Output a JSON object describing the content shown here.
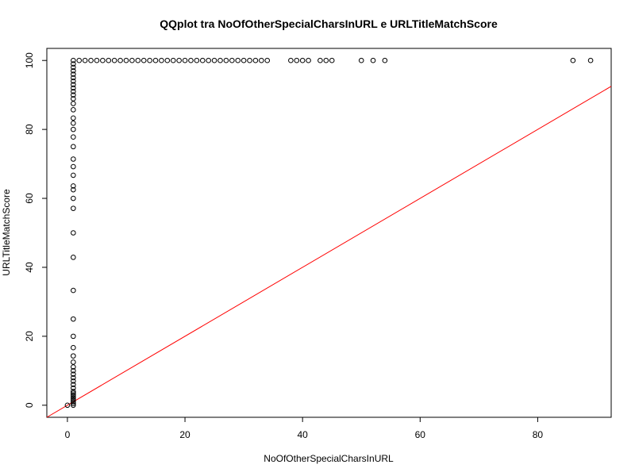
{
  "chart_data": {
    "type": "scatter",
    "title": "QQplot tra NoOfOtherSpecialCharsInURL e URLTitleMatchScore",
    "xlabel": "NoOfOtherSpecialCharsInURL",
    "ylabel": "URLTitleMatchScore",
    "xlim": [
      -3.5,
      92.5
    ],
    "ylim": [
      -3.5,
      103.5
    ],
    "xticks": [
      0,
      20,
      40,
      60,
      80
    ],
    "yticks": [
      0,
      20,
      40,
      60,
      80,
      100
    ],
    "grid": false,
    "legend": "none",
    "point_color": "#000000",
    "line_color": "#ff0000",
    "reference_line": {
      "intercept": 0,
      "slope": 1
    },
    "series": [
      {
        "points": [
          [
            0,
            0
          ],
          [
            1,
            0
          ],
          [
            1,
            0.5
          ],
          [
            1,
            1
          ],
          [
            1,
            1.5
          ],
          [
            1,
            2
          ],
          [
            1,
            2.5
          ],
          [
            1,
            3
          ],
          [
            1,
            3.5
          ],
          [
            1,
            4
          ],
          [
            1,
            5
          ],
          [
            1,
            6
          ],
          [
            1,
            7
          ],
          [
            1,
            8
          ],
          [
            1,
            9
          ],
          [
            1,
            10
          ],
          [
            1,
            11.1
          ],
          [
            1,
            12.5
          ],
          [
            1,
            14.3
          ],
          [
            1,
            16.7
          ],
          [
            1,
            20
          ],
          [
            1,
            25
          ],
          [
            1,
            33.3
          ],
          [
            1,
            42.9
          ],
          [
            1,
            50
          ],
          [
            1,
            57.1
          ],
          [
            1,
            60
          ],
          [
            1,
            62.5
          ],
          [
            1,
            63.6
          ],
          [
            1,
            66.7
          ],
          [
            1,
            69.2
          ],
          [
            1,
            71.4
          ],
          [
            1,
            75
          ],
          [
            1,
            77.8
          ],
          [
            1,
            80
          ],
          [
            1,
            81.8
          ],
          [
            1,
            83.3
          ],
          [
            1,
            85.7
          ],
          [
            1,
            87.5
          ],
          [
            1,
            88.9
          ],
          [
            1,
            90
          ],
          [
            1,
            91
          ],
          [
            1,
            92
          ],
          [
            1,
            93
          ],
          [
            1,
            94
          ],
          [
            1,
            95
          ],
          [
            1,
            96
          ],
          [
            1,
            97
          ],
          [
            1,
            98
          ],
          [
            1,
            99
          ],
          [
            1,
            100
          ],
          [
            2,
            100
          ],
          [
            3,
            100
          ],
          [
            4,
            100
          ],
          [
            5,
            100
          ],
          [
            6,
            100
          ],
          [
            7,
            100
          ],
          [
            8,
            100
          ],
          [
            9,
            100
          ],
          [
            10,
            100
          ],
          [
            11,
            100
          ],
          [
            12,
            100
          ],
          [
            13,
            100
          ],
          [
            14,
            100
          ],
          [
            15,
            100
          ],
          [
            16,
            100
          ],
          [
            17,
            100
          ],
          [
            18,
            100
          ],
          [
            19,
            100
          ],
          [
            20,
            100
          ],
          [
            21,
            100
          ],
          [
            22,
            100
          ],
          [
            23,
            100
          ],
          [
            24,
            100
          ],
          [
            25,
            100
          ],
          [
            26,
            100
          ],
          [
            27,
            100
          ],
          [
            28,
            100
          ],
          [
            29,
            100
          ],
          [
            30,
            100
          ],
          [
            31,
            100
          ],
          [
            32,
            100
          ],
          [
            33,
            100
          ],
          [
            34,
            100
          ],
          [
            38,
            100
          ],
          [
            39,
            100
          ],
          [
            40,
            100
          ],
          [
            41,
            100
          ],
          [
            43,
            100
          ],
          [
            44,
            100
          ],
          [
            45,
            100
          ],
          [
            50,
            100
          ],
          [
            52,
            100
          ],
          [
            54,
            100
          ],
          [
            86,
            100
          ],
          [
            89,
            100
          ]
        ]
      }
    ]
  }
}
